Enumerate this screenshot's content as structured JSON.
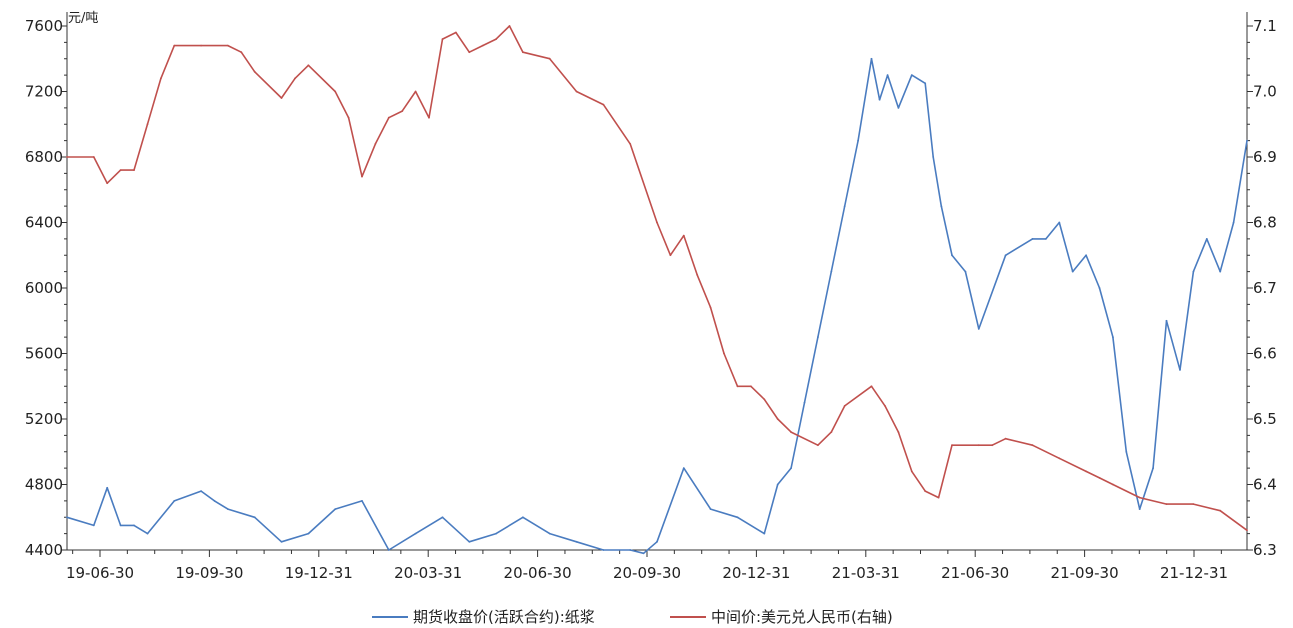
{
  "chart_data": {
    "type": "line",
    "y_unit_label": "元/吨",
    "ylim_left": [
      4400,
      7600
    ],
    "ylim_right": [
      6.3,
      7.1
    ],
    "y_ticks_left": [
      "4400",
      "4800",
      "5200",
      "5600",
      "6000",
      "6400",
      "6800",
      "7200",
      "7600"
    ],
    "y_ticks_right": [
      "6.3",
      "6.4",
      "6.5",
      "6.6",
      "6.7",
      "6.8",
      "6.9",
      "7.0",
      "7.1"
    ],
    "x_tick_labels": [
      "19-06-30",
      "19-09-30",
      "19-12-31",
      "20-03-31",
      "20-06-30",
      "20-09-30",
      "20-12-31",
      "21-03-31",
      "21-06-30",
      "21-09-30",
      "21-12-31"
    ],
    "x_index_range": [
      0,
      44
    ],
    "series": [
      {
        "name": "期货收盘价(活跃合约):纸浆",
        "axis": "left",
        "color": "#4a7cc0",
        "x": [
          0,
          1,
          1.5,
          2,
          2.5,
          3,
          4,
          5,
          5.5,
          6,
          7,
          8,
          9,
          10,
          11,
          12,
          13,
          14,
          15,
          16,
          17,
          18,
          19,
          20,
          21,
          21.5,
          22,
          23,
          24,
          25,
          26,
          26.5,
          27,
          27.5,
          28,
          28.5,
          29,
          29.5,
          30,
          30.3,
          30.6,
          31,
          31.5,
          32,
          32.3,
          32.6,
          33,
          33.5,
          34,
          35,
          36,
          36.5,
          37,
          37.5,
          38,
          38.5,
          39,
          39.5,
          40,
          40.5,
          41,
          41.5,
          42,
          42.5,
          43,
          43.5,
          44
        ],
        "values": [
          4600,
          4550,
          4780,
          4550,
          4550,
          4500,
          4700,
          4760,
          4700,
          4650,
          4600,
          4450,
          4500,
          4650,
          4700,
          4400,
          4500,
          4600,
          4450,
          4500,
          4600,
          4500,
          4450,
          4400,
          4400,
          4380,
          4450,
          4900,
          4650,
          4600,
          4500,
          4800,
          4900,
          5300,
          5700,
          6100,
          6500,
          6900,
          7400,
          7150,
          7300,
          7100,
          7300,
          7250,
          6800,
          6500,
          6200,
          6100,
          5750,
          6200,
          6300,
          6300,
          6400,
          6100,
          6200,
          6000,
          5700,
          5000,
          4650,
          4900,
          5800,
          5500,
          6100,
          6300,
          6100,
          6400,
          6900
        ]
      },
      {
        "name": "中间价:美元兑人民币(右轴)",
        "axis": "right",
        "color": "#c0504d",
        "x": [
          0,
          1,
          1.5,
          2,
          2.5,
          3,
          3.5,
          4,
          5,
          6,
          6.5,
          7,
          8,
          8.5,
          9,
          10,
          10.5,
          11,
          11.5,
          12,
          12.5,
          13,
          13.5,
          14,
          14.5,
          15,
          15.5,
          16,
          16.5,
          17,
          18,
          19,
          20,
          21,
          22,
          22.5,
          23,
          23.5,
          24,
          24.5,
          25,
          25.5,
          26,
          26.5,
          27,
          28,
          28.5,
          29,
          30,
          30.5,
          31,
          31.5,
          32,
          32.5,
          33,
          34,
          34.5,
          35,
          36,
          37,
          38,
          38.5,
          39,
          40,
          41,
          42,
          43,
          44
        ],
        "values": [
          6.9,
          6.9,
          6.86,
          6.88,
          6.88,
          6.95,
          7.02,
          7.07,
          7.07,
          7.07,
          7.06,
          7.03,
          6.99,
          7.02,
          7.04,
          7.0,
          6.96,
          6.87,
          6.92,
          6.96,
          6.97,
          7.0,
          6.96,
          7.08,
          7.09,
          7.06,
          7.07,
          7.08,
          7.1,
          7.06,
          7.05,
          7.0,
          6.98,
          6.92,
          6.8,
          6.75,
          6.78,
          6.72,
          6.67,
          6.6,
          6.55,
          6.55,
          6.53,
          6.5,
          6.48,
          6.46,
          6.48,
          6.52,
          6.55,
          6.52,
          6.48,
          6.42,
          6.39,
          6.38,
          6.46,
          6.46,
          6.46,
          6.47,
          6.46,
          6.44,
          6.42,
          6.41,
          6.4,
          6.38,
          6.37,
          6.37,
          6.36,
          6.33
        ]
      }
    ],
    "legend_position": "bottom",
    "grid": false
  }
}
